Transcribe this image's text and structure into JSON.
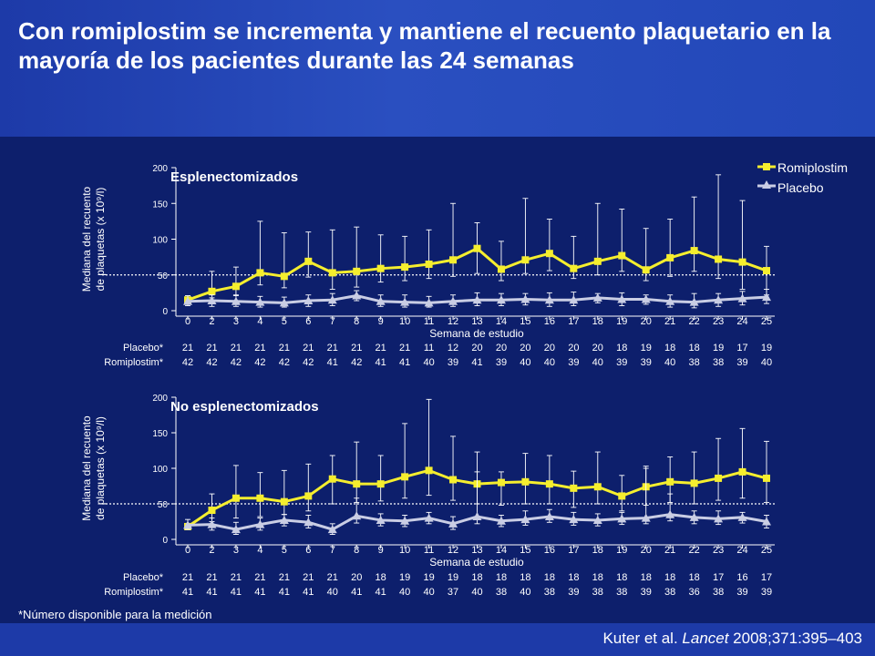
{
  "title": "Con romiplostim se incrementa y mantiene el recuento plaquetario en la mayoría de los pacientes durante las 24 semanas",
  "footnote": "*Número disponible para la medición",
  "citation": {
    "pre": "Kuter et al. ",
    "journal": "Lancet",
    "post": " 2008;371:395–403"
  },
  "colors": {
    "romiplostim": "#f5ee2e",
    "placebo": "#c9cde4",
    "background": "#0d1f6c",
    "header": "#1d3aa8"
  },
  "chart_data": [
    {
      "type": "line",
      "title": "Esplenectomizados",
      "xlabel": "Semana de estudio",
      "ylabel": "Mediana del recuento de plaquetas (x 10⁹/l)",
      "ylim": [
        0,
        200
      ],
      "yticks": [
        0,
        50,
        100,
        150,
        200
      ],
      "reference_line": 50,
      "x": [
        0,
        2,
        3,
        4,
        5,
        6,
        7,
        8,
        9,
        10,
        11,
        12,
        13,
        14,
        15,
        16,
        17,
        18,
        19,
        20,
        21,
        22,
        23,
        24,
        25
      ],
      "series": [
        {
          "name": "Romiplostim",
          "marker": "square",
          "values": [
            15,
            27,
            34,
            53,
            48,
            69,
            53,
            55,
            59,
            61,
            65,
            71,
            87,
            58,
            71,
            80,
            59,
            69,
            77,
            57,
            74,
            84,
            72,
            68,
            56
          ],
          "upper": [
            18,
            55,
            61,
            125,
            109,
            110,
            113,
            117,
            106,
            104,
            113,
            150,
            123,
            97,
            157,
            128,
            104,
            150,
            142,
            115,
            128,
            159,
            190,
            154,
            90
          ],
          "lower": [
            12,
            18,
            22,
            36,
            32,
            47,
            30,
            33,
            40,
            42,
            45,
            48,
            52,
            42,
            52,
            56,
            45,
            50,
            55,
            42,
            48,
            55,
            45,
            30,
            22
          ]
        },
        {
          "name": "Placebo",
          "marker": "triangle",
          "values": [
            13,
            14,
            13,
            12,
            11,
            14,
            15,
            21,
            13,
            12,
            11,
            13,
            15,
            15,
            16,
            15,
            15,
            18,
            16,
            16,
            13,
            12,
            15,
            17,
            19
          ],
          "upper": [
            21,
            22,
            21,
            20,
            19,
            22,
            24,
            28,
            22,
            22,
            20,
            22,
            25,
            24,
            24,
            25,
            26,
            24,
            25,
            22,
            22,
            24,
            24,
            27,
            30
          ],
          "lower": [
            7,
            6,
            6,
            5,
            5,
            6,
            7,
            14,
            6,
            5,
            5,
            6,
            7,
            7,
            8,
            6,
            7,
            11,
            7,
            9,
            5,
            4,
            6,
            8,
            10
          ]
        }
      ],
      "counts": {
        "Placebo*": [
          21,
          21,
          21,
          21,
          21,
          21,
          21,
          21,
          21,
          21,
          11,
          12,
          20,
          20,
          20,
          20,
          20,
          20,
          18,
          19,
          18,
          18,
          19,
          17,
          19
        ],
        "Romiplostim*": [
          42,
          42,
          42,
          42,
          42,
          42,
          41,
          42,
          41,
          41,
          40,
          39,
          41,
          39,
          40,
          40,
          39,
          40,
          39,
          39,
          40,
          38,
          38,
          39,
          40
        ]
      }
    },
    {
      "type": "line",
      "title": "No esplenectomizados",
      "xlabel": "Semana de estudio",
      "ylabel": "Mediana del recuento de plaquetas (x 10⁹/l)",
      "ylim": [
        0,
        200
      ],
      "yticks": [
        0,
        50,
        100,
        150,
        200
      ],
      "reference_line": 50,
      "x": [
        0,
        2,
        3,
        4,
        5,
        6,
        7,
        8,
        9,
        10,
        11,
        12,
        13,
        14,
        15,
        16,
        17,
        18,
        19,
        20,
        21,
        22,
        23,
        24,
        25
      ],
      "series": [
        {
          "name": "Romiplostim",
          "marker": "square",
          "values": [
            18,
            41,
            58,
            58,
            53,
            61,
            85,
            78,
            78,
            88,
            97,
            84,
            78,
            80,
            81,
            78,
            72,
            74,
            61,
            74,
            81,
            79,
            86,
            95,
            86
          ],
          "upper": [
            22,
            64,
            104,
            94,
            97,
            106,
            118,
            137,
            118,
            163,
            197,
            145,
            123,
            95,
            121,
            118,
            96,
            123,
            90,
            103,
            116,
            123,
            142,
            156,
            138
          ],
          "lower": [
            14,
            25,
            30,
            32,
            35,
            40,
            50,
            52,
            54,
            58,
            62,
            55,
            50,
            48,
            50,
            50,
            45,
            50,
            40,
            48,
            52,
            50,
            55,
            58,
            52
          ]
        },
        {
          "name": "Placebo",
          "marker": "triangle",
          "values": [
            20,
            21,
            14,
            21,
            27,
            24,
            14,
            33,
            27,
            26,
            30,
            22,
            32,
            26,
            28,
            32,
            28,
            27,
            29,
            30,
            35,
            31,
            29,
            31,
            25
          ],
          "upper": [
            28,
            30,
            24,
            30,
            35,
            34,
            22,
            58,
            36,
            34,
            38,
            32,
            95,
            34,
            40,
            42,
            38,
            36,
            38,
            100,
            64,
            40,
            40,
            38,
            34
          ],
          "lower": [
            14,
            13,
            7,
            13,
            19,
            16,
            7,
            23,
            19,
            18,
            22,
            14,
            22,
            18,
            20,
            24,
            20,
            19,
            21,
            22,
            26,
            22,
            21,
            23,
            16
          ]
        }
      ],
      "counts": {
        "Placebo*": [
          21,
          21,
          21,
          21,
          21,
          21,
          21,
          20,
          18,
          19,
          19,
          19,
          18,
          18,
          18,
          18,
          18,
          18,
          18,
          18,
          18,
          18,
          17,
          16,
          17
        ],
        "Romiplostim*": [
          41,
          41,
          41,
          41,
          41,
          41,
          40,
          41,
          41,
          40,
          40,
          37,
          40,
          38,
          40,
          38,
          39,
          38,
          38,
          39,
          38,
          36,
          38,
          39,
          39
        ]
      }
    }
  ]
}
